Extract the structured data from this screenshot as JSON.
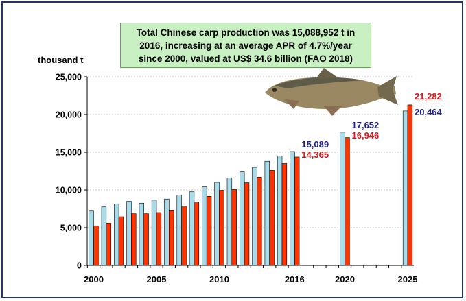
{
  "chart_data": {
    "type": "bar",
    "annotation": [
      "Total Chinese carp production was 15,088,952 t in",
      "2016, increasing at an average APR of 4.7%/year",
      "since 2000, valued at US$ 34.6 billion (FAO 2018)"
    ],
    "ylabel": "thousand t",
    "ylim": [
      0,
      25000
    ],
    "yticks": [
      "0",
      "5,000",
      "10,000",
      "15,000",
      "20,000",
      "25,000"
    ],
    "xticks": [
      {
        "year": 2000,
        "label": "2000"
      },
      {
        "year": 2005,
        "label": "2005"
      },
      {
        "year": 2010,
        "label": "2010"
      },
      {
        "year": 2016,
        "label": "2016"
      },
      {
        "year": 2020,
        "label": "2020"
      },
      {
        "year": 2025,
        "label": "2025"
      }
    ],
    "grid": true,
    "years": [
      2000,
      2001,
      2002,
      2003,
      2004,
      2005,
      2006,
      2007,
      2008,
      2009,
      2010,
      2011,
      2012,
      2013,
      2014,
      2015,
      2016,
      2020,
      2025
    ],
    "series": [
      {
        "color": "#a9dceb",
        "values": [
          7200,
          7750,
          8150,
          8500,
          8250,
          8650,
          8800,
          9300,
          9750,
          10400,
          11000,
          11600,
          12400,
          13000,
          13800,
          14500,
          15089,
          17652,
          20464
        ]
      },
      {
        "color": "#ff3300",
        "values": [
          5250,
          5600,
          6450,
          6850,
          6850,
          7000,
          7250,
          7850,
          8400,
          9150,
          9950,
          10050,
          10950,
          11700,
          12600,
          13500,
          14365,
          16946,
          21282
        ]
      }
    ],
    "data_labels": [
      {
        "year": 2016,
        "blue": "15,089",
        "red": "14,365"
      },
      {
        "year": 2020,
        "blue": "17,652",
        "red": "16,946"
      },
      {
        "year": 2025,
        "blue": "20,464",
        "red": "21,282"
      }
    ],
    "label_colors": {
      "blue": "#1f1f8a",
      "red": "#e0151a",
      "highlight_tick": "#1f3fbf"
    }
  }
}
